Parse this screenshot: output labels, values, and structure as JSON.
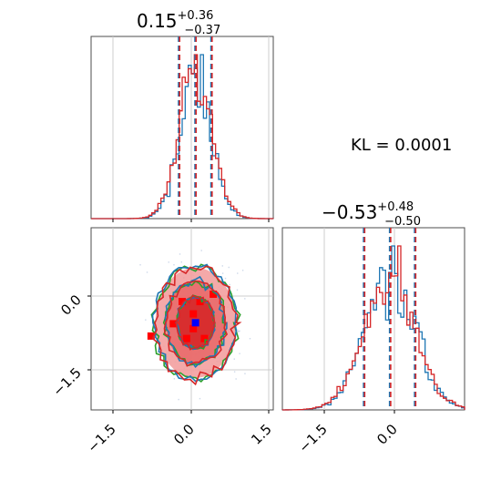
{
  "chart_data": [
    {
      "type": "histogram",
      "title_value": "0.15",
      "title_plus": "+0.36",
      "title_minus": "−0.37",
      "xlim": [
        -2.2,
        1.9
      ],
      "quantile_lines": [
        -0.22,
        0.15,
        0.51
      ],
      "series": [
        {
          "color": "#1f77b4",
          "mean": 0.15,
          "sd": 0.36
        },
        {
          "color": "#d62728",
          "mean": 0.15,
          "sd": 0.37
        }
      ]
    },
    {
      "type": "histogram",
      "title_value": "−0.53",
      "title_plus": "+0.48",
      "title_minus": "−0.50",
      "xlim": [
        -2.6,
        0.9
      ],
      "xticks": [
        "−1.5",
        "0.0"
      ],
      "quantile_lines": [
        -1.03,
        -0.53,
        -0.05
      ],
      "series": [
        {
          "color": "#1f77b4",
          "mean": -0.53,
          "sd": 0.49
        },
        {
          "color": "#d62728",
          "mean": -0.53,
          "sd": 0.5
        }
      ]
    },
    {
      "type": "scatter",
      "xlim": [
        -2.2,
        1.9
      ],
      "ylim": [
        -2.3,
        1.4
      ],
      "xticks": [
        "−1.5",
        "0.0",
        "1.5"
      ],
      "yticks": [
        "0.0",
        "−1.5"
      ],
      "center": [
        0.15,
        -0.53
      ],
      "blue_marker": [
        0.15,
        -0.53
      ],
      "red_markers": [
        [
          -0.15,
          -0.1
        ],
        [
          0.25,
          -0.1
        ],
        [
          0.1,
          -0.35
        ],
        [
          -0.35,
          -0.55
        ],
        [
          0.1,
          -0.65
        ],
        [
          -0.05,
          -0.85
        ],
        [
          0.35,
          -0.85
        ],
        [
          -0.85,
          -0.8
        ],
        [
          0.55,
          0.05
        ]
      ],
      "contours": [
        {
          "color": "#2ca02c",
          "levels": [
            1.0,
            1.6,
            2.2
          ]
        },
        {
          "color": "#1f77b4",
          "levels": [
            1.0,
            1.6,
            2.2
          ]
        },
        {
          "color": "#d62728",
          "levels": [
            1.0,
            1.6,
            2.2
          ]
        }
      ]
    }
  ],
  "kl_text": "KL = 0.0001"
}
